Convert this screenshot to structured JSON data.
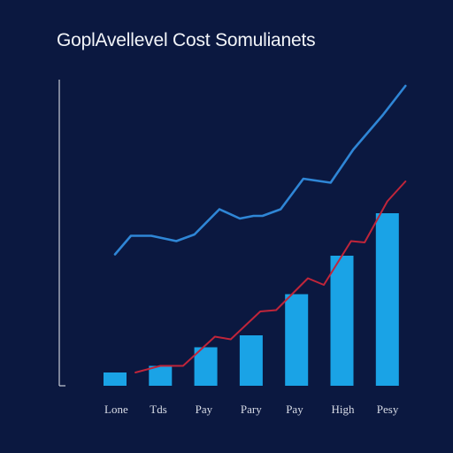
{
  "chart_data": {
    "type": "bar",
    "title": "GoplAvellevel Cost Somulianets",
    "categories": [
      "Lone",
      "Tds",
      "Pay",
      "Pary",
      "Pay",
      "High",
      "Pesy"
    ],
    "series": [
      {
        "kind": "bar",
        "color": "#1aa3e6",
        "values": [
          1.0,
          1.5,
          2.9,
          3.8,
          6.9,
          9.8,
          13.0
        ]
      },
      {
        "kind": "line",
        "color": "#2f86d6",
        "x": [
          0,
          0.35,
          0.8,
          1.35,
          1.75,
          2.3,
          2.75,
          3.05,
          3.25,
          3.65,
          4.15,
          4.75,
          5.25,
          5.9,
          6.4
        ],
        "values": [
          9.9,
          11.3,
          11.3,
          10.9,
          11.4,
          13.3,
          12.6,
          12.8,
          12.8,
          13.3,
          15.6,
          15.3,
          17.8,
          20.4,
          22.6
        ]
      },
      {
        "kind": "line",
        "color": "#c0253a",
        "x": [
          0.45,
          1.0,
          1.5,
          2.2,
          2.55,
          3.2,
          3.55,
          4.25,
          4.6,
          5.2,
          5.5,
          6.0,
          6.4
        ],
        "values": [
          1.0,
          1.5,
          1.5,
          3.7,
          3.5,
          5.6,
          5.7,
          8.1,
          7.6,
          10.9,
          10.8,
          13.9,
          15.4
        ]
      }
    ],
    "ylim": [
      0,
      24
    ]
  }
}
